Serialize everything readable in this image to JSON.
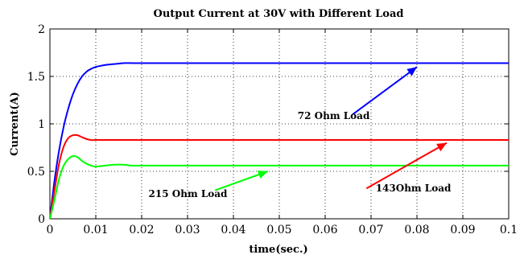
{
  "chart_data": {
    "type": "line",
    "title": "Output Current at 30V with Different Load",
    "xlabel": "time(sec.)",
    "ylabel": "Current(A)",
    "xlim": [
      0,
      0.1
    ],
    "ylim": [
      0,
      2
    ],
    "xticks": [
      0,
      0.01,
      0.02,
      0.03,
      0.04,
      0.05,
      0.06,
      0.07,
      0.08,
      0.09,
      0.1
    ],
    "xtick_labels": [
      "0",
      "0.01",
      "0.02",
      "0.03",
      "0.04",
      "0.05",
      "0.06",
      "0.07",
      "0.08",
      "0.09",
      "0.1"
    ],
    "yticks": [
      0,
      0.5,
      1,
      1.5,
      2
    ],
    "ytick_labels": [
      "0",
      "0.5",
      "1",
      "1.5",
      "2"
    ],
    "grid": true,
    "series": [
      {
        "color": "#0000ff",
        "x": [
          0,
          0.001,
          0.002,
          0.003,
          0.004,
          0.005,
          0.006,
          0.007,
          0.008,
          0.009,
          0.01,
          0.012,
          0.014,
          0.016,
          0.018,
          0.02,
          0.03,
          0.05,
          0.07,
          0.1
        ],
        "y": [
          0,
          0.4,
          0.72,
          0.97,
          1.16,
          1.31,
          1.42,
          1.5,
          1.55,
          1.58,
          1.6,
          1.62,
          1.63,
          1.64,
          1.64,
          1.64,
          1.64,
          1.64,
          1.64,
          1.64
        ]
      },
      {
        "color": "#ff0000",
        "x": [
          0,
          0.001,
          0.002,
          0.003,
          0.004,
          0.005,
          0.006,
          0.007,
          0.008,
          0.009,
          0.01,
          0.012,
          0.015,
          0.02,
          0.05,
          0.1
        ],
        "y": [
          0,
          0.3,
          0.58,
          0.76,
          0.85,
          0.88,
          0.88,
          0.86,
          0.84,
          0.83,
          0.83,
          0.83,
          0.83,
          0.83,
          0.83,
          0.83
        ]
      },
      {
        "color": "#00ff00",
        "x": [
          0,
          0.001,
          0.002,
          0.003,
          0.004,
          0.005,
          0.006,
          0.007,
          0.008,
          0.009,
          0.01,
          0.012,
          0.014,
          0.016,
          0.018,
          0.02,
          0.03,
          0.05,
          0.1
        ],
        "y": [
          0,
          0.2,
          0.42,
          0.56,
          0.63,
          0.66,
          0.65,
          0.61,
          0.58,
          0.56,
          0.55,
          0.56,
          0.57,
          0.57,
          0.56,
          0.56,
          0.56,
          0.56,
          0.56
        ]
      }
    ],
    "annotations": [
      {
        "text": "72 Ohm Load",
        "color": "#0000ff",
        "label_at": [
          0.054,
          1.05
        ],
        "tail": [
          0.066,
          1.1
        ],
        "head": [
          0.08,
          1.6
        ]
      },
      {
        "text": "143Ohm Load",
        "color": "#ff0000",
        "label_at": [
          0.071,
          0.29
        ],
        "tail": [
          0.069,
          0.32
        ],
        "head": [
          0.0865,
          0.8
        ]
      },
      {
        "text": "215 Ohm Load",
        "color": "#00ff00",
        "label_at": [
          0.0215,
          0.23
        ],
        "tail": [
          0.036,
          0.3
        ],
        "head": [
          0.0475,
          0.5
        ]
      }
    ]
  }
}
